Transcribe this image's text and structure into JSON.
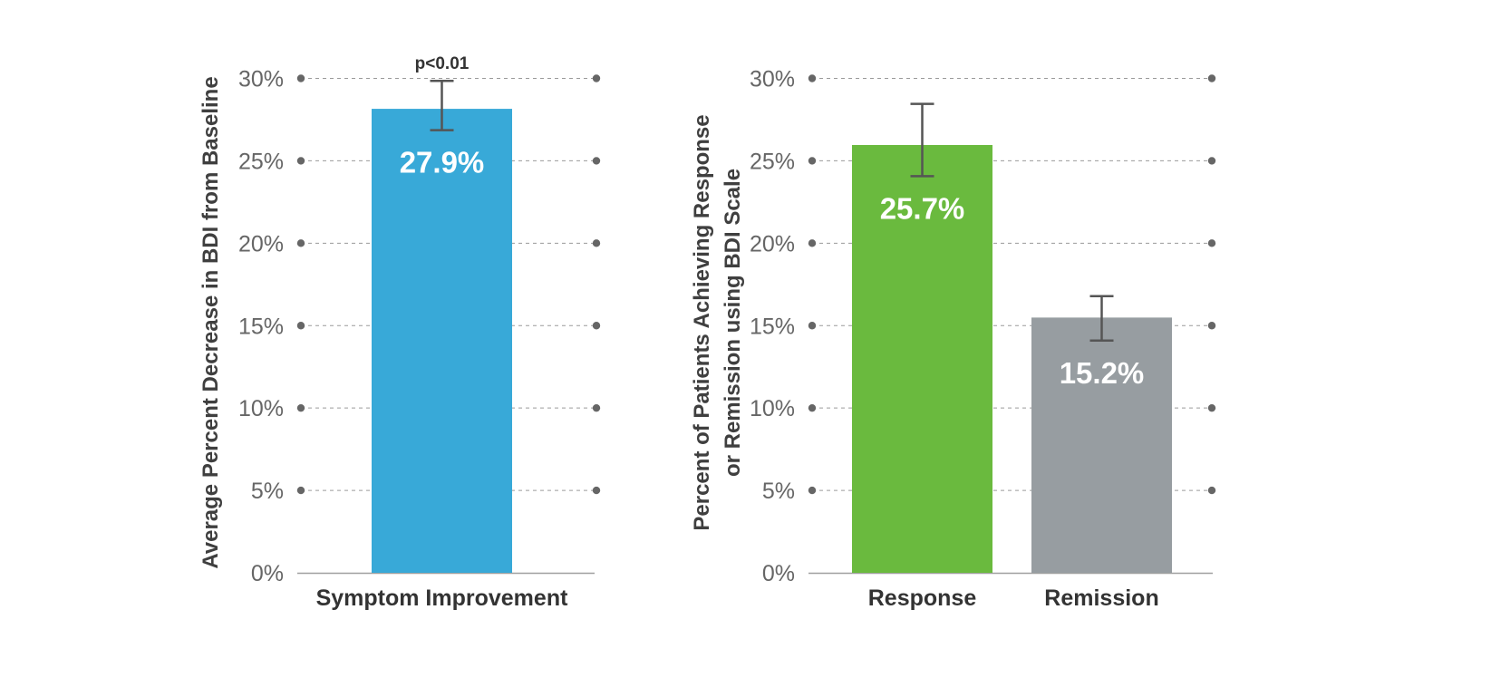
{
  "chart_data": [
    {
      "type": "bar",
      "ylabel": "Average Percent Decrease in BDI from Baseline",
      "xlabel": "",
      "ylim": [
        0,
        30
      ],
      "yticks": [
        "0%",
        "5%",
        "10%",
        "15%",
        "20%",
        "25%",
        "30%"
      ],
      "ytick_values": [
        0,
        5,
        10,
        15,
        20,
        25,
        30
      ],
      "grid": true,
      "categories": [
        "Symptom Improvement"
      ],
      "values": [
        27.9
      ],
      "value_labels": [
        "27.9%"
      ],
      "error_low": [
        26.6
      ],
      "error_high": [
        29.6
      ],
      "colors": [
        "#38a9d8"
      ],
      "annotation": "p<0.01"
    },
    {
      "type": "bar",
      "ylabel": "Percent of Patients Achieving Response or Remission using BDI Scale",
      "ylabel_lines": [
        "Percent of Patients Achieving Response",
        "or Remission using BDI Scale"
      ],
      "xlabel": "",
      "ylim": [
        0,
        30
      ],
      "yticks": [
        "0%",
        "5%",
        "10%",
        "15%",
        "20%",
        "25%",
        "30%"
      ],
      "ytick_values": [
        0,
        5,
        10,
        15,
        20,
        25,
        30
      ],
      "grid": true,
      "categories": [
        "Response",
        "Remission"
      ],
      "values": [
        25.7,
        15.2
      ],
      "value_labels": [
        "25.7%",
        "15.2%"
      ],
      "error_low": [
        23.8,
        13.8
      ],
      "error_high": [
        28.2,
        16.5
      ],
      "colors": [
        "#6aba3e",
        "#979da1"
      ]
    }
  ]
}
